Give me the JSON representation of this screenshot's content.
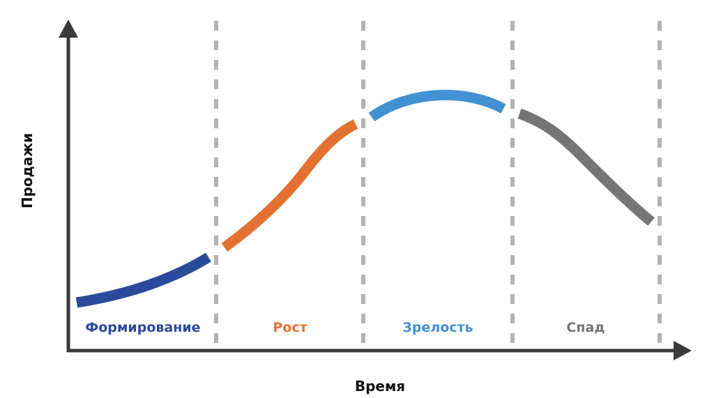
{
  "axes": {
    "x_label": "Время",
    "y_label": "Продажи"
  },
  "colors": {
    "axis": "#3a3a3a",
    "divider": "#b3b3b3",
    "formation": "#2a4b9b",
    "growth": "#e37232",
    "maturity": "#4291d3",
    "decline": "#757575"
  },
  "stages": [
    {
      "id": "formation",
      "label": "Формирование",
      "color": "#2a4b9b"
    },
    {
      "id": "growth",
      "label": "Рост",
      "color": "#e37232"
    },
    {
      "id": "maturity",
      "label": "Зрелость",
      "color": "#4291d3"
    },
    {
      "id": "decline",
      "label": "Спад",
      "color": "#757575"
    }
  ]
}
